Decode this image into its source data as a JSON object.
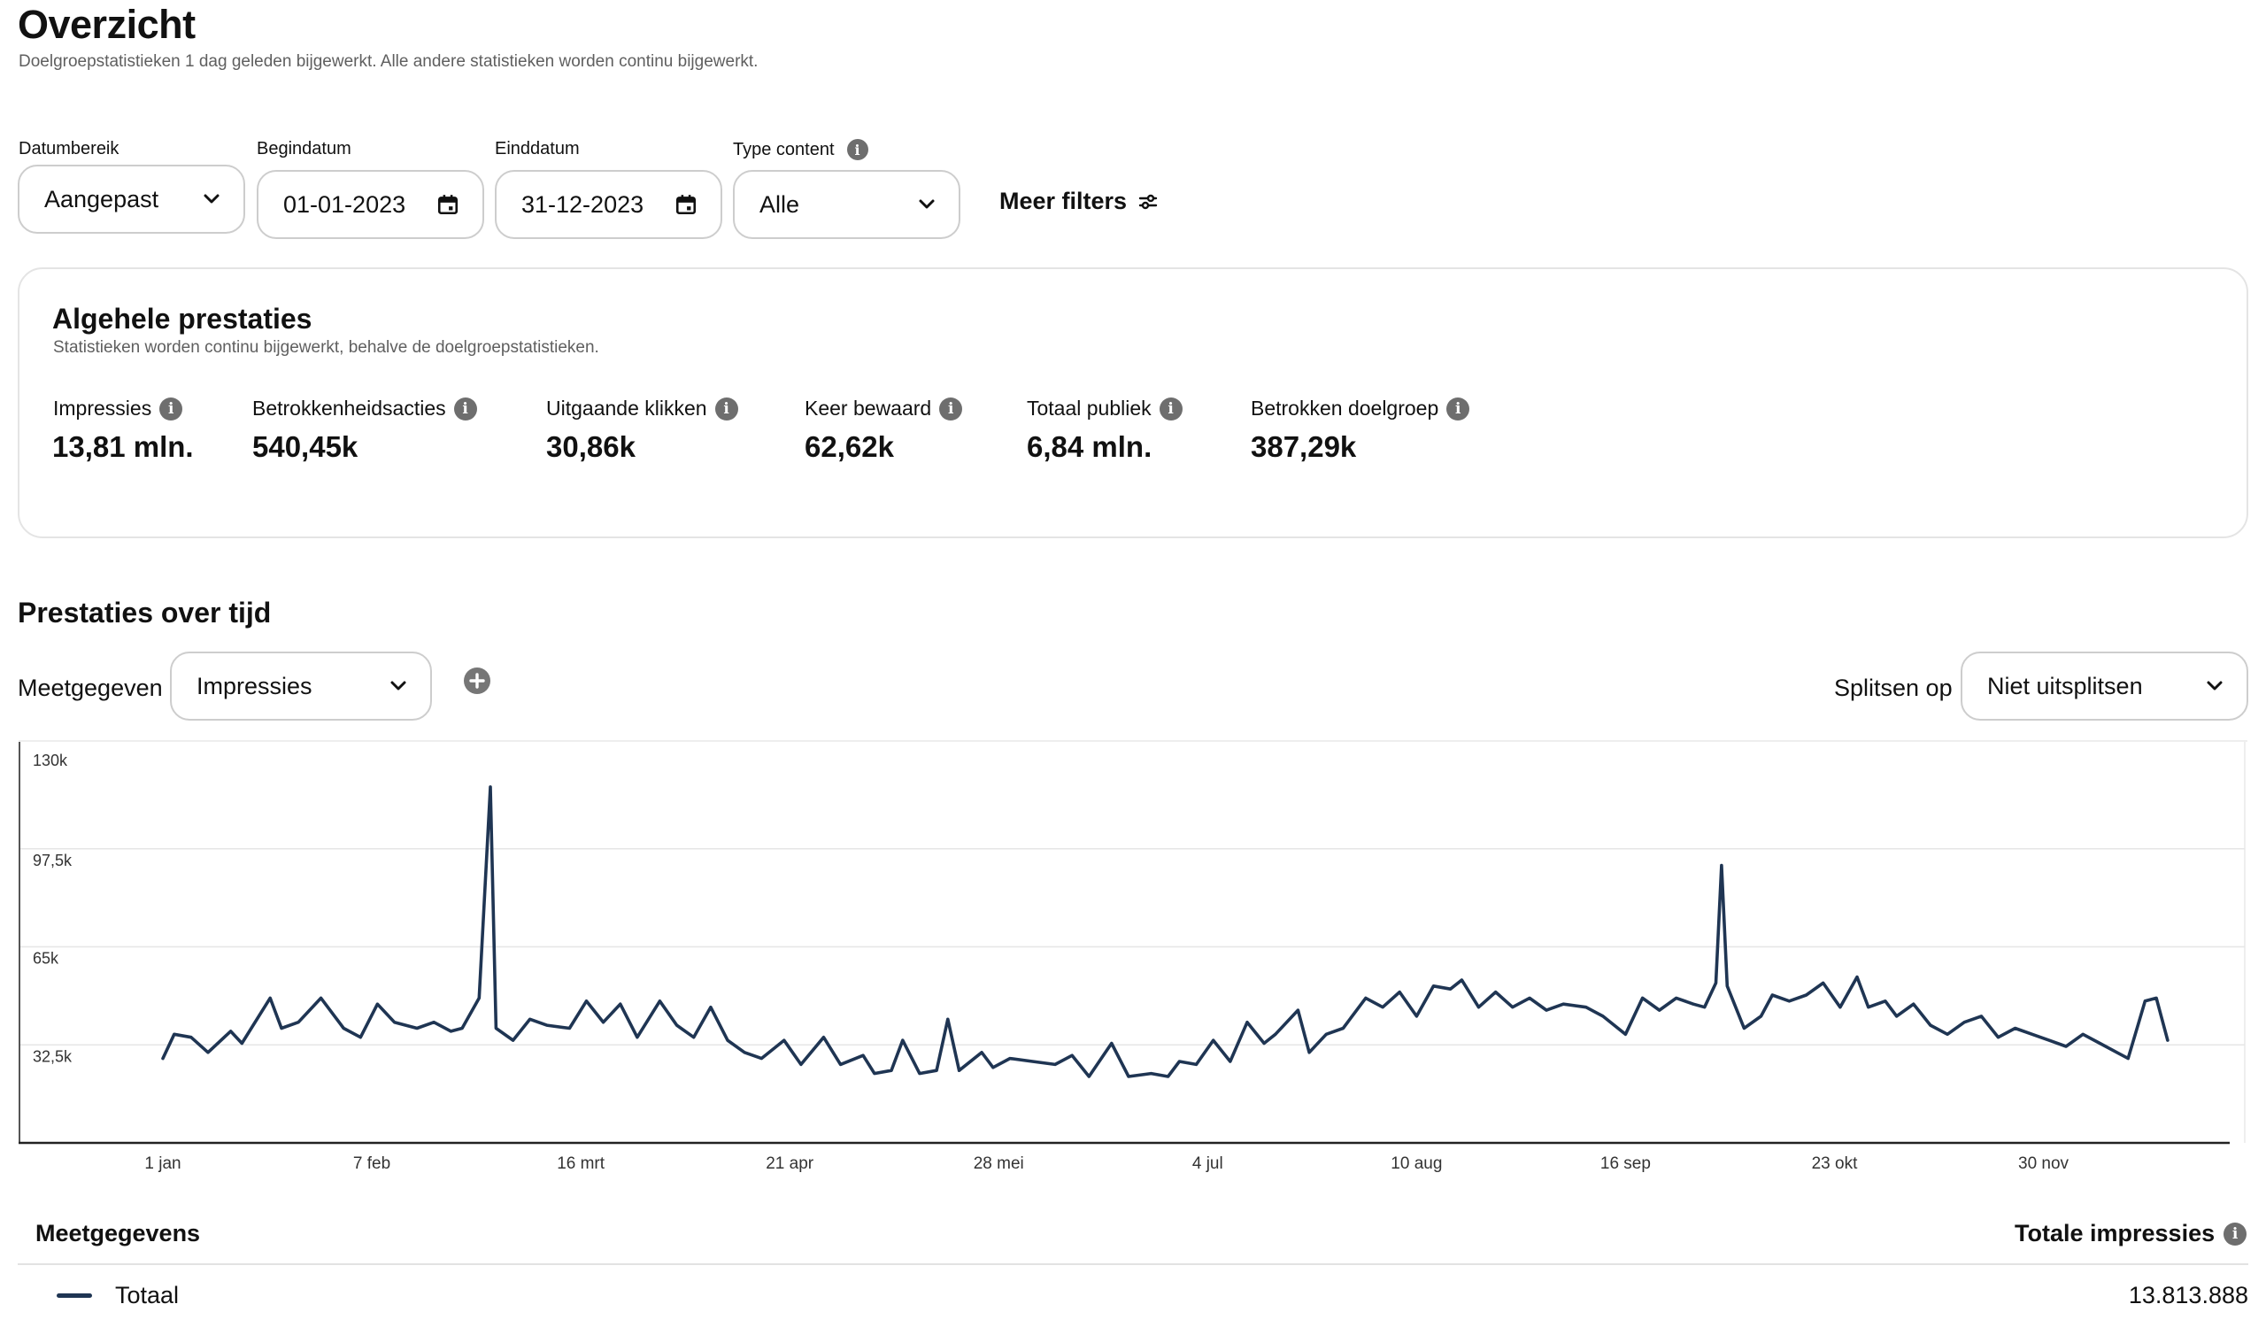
{
  "header": {
    "title": "Overzicht",
    "subtitle": "Doelgroepstatistieken 1 dag geleden bijgewerkt. Alle andere statistieken worden continu bijgewerkt."
  },
  "filters": {
    "date_range_label": "Datumbereik",
    "date_range_value": "Aangepast",
    "start_label": "Begindatum",
    "start_value": "01-01-2023",
    "end_label": "Einddatum",
    "end_value": "31-12-2023",
    "content_type_label": "Type content",
    "content_type_value": "Alle",
    "more_filters": "Meer filters"
  },
  "overall": {
    "title": "Algehele prestaties",
    "subtitle": "Statistieken worden continu bijgewerkt, behalve de doelgroepstatistieken.",
    "metrics": [
      {
        "label": "Impressies",
        "value": "13,81 mln."
      },
      {
        "label": "Betrokkenheidsacties",
        "value": "540,45k"
      },
      {
        "label": "Uitgaande klikken",
        "value": "30,86k"
      },
      {
        "label": "Keer bewaard",
        "value": "62,62k"
      },
      {
        "label": "Totaal publiek",
        "value": "6,84 mln."
      },
      {
        "label": "Betrokken doelgroep",
        "value": "387,29k"
      }
    ]
  },
  "performance": {
    "title": "Prestaties over tijd",
    "metric_label": "Meetgegeven",
    "metric_value": "Impressies",
    "split_label": "Splitsen op",
    "split_value": "Niet uitsplitsen"
  },
  "table": {
    "col_metric": "Meetgegevens",
    "col_total": "Totale impressies",
    "row_label": "Totaal",
    "row_value": "13.813.888"
  },
  "colors": {
    "line": "#1f3553",
    "grid": "#e6e6e6",
    "axis": "#222222"
  },
  "chart_data": {
    "type": "line",
    "x_start": "2023-01-01",
    "x_end": "2023-12-31",
    "y_ticks": [
      "32,5k",
      "65k",
      "97,5k",
      "130k"
    ],
    "y_tick_values": [
      32500,
      65000,
      97500,
      130000
    ],
    "ylim": [
      0,
      130000
    ],
    "x_ticks": [
      "1 jan",
      "7 feb",
      "16 mrt",
      "21 apr",
      "28 mei",
      "4 jul",
      "10 aug",
      "16 sep",
      "23 okt",
      "30 nov"
    ],
    "x_tick_days": [
      0,
      37,
      74,
      111,
      148,
      185,
      222,
      259,
      296,
      333
    ],
    "grid": true,
    "series": [
      {
        "anchors": [
          [
            0,
            28000
          ],
          [
            2,
            36000
          ],
          [
            5,
            35000
          ],
          [
            8,
            30000
          ],
          [
            12,
            37000
          ],
          [
            14,
            33000
          ],
          [
            19,
            48000
          ],
          [
            21,
            38000
          ],
          [
            24,
            40000
          ],
          [
            28,
            48000
          ],
          [
            32,
            38000
          ],
          [
            35,
            35000
          ],
          [
            38,
            46000
          ],
          [
            41,
            40000
          ],
          [
            45,
            38000
          ],
          [
            48,
            40000
          ],
          [
            51,
            37000
          ],
          [
            53,
            38000
          ],
          [
            56,
            48000
          ],
          [
            58,
            118000
          ],
          [
            59,
            38000
          ],
          [
            62,
            34000
          ],
          [
            65,
            41000
          ],
          [
            68,
            39000
          ],
          [
            72,
            38000
          ],
          [
            75,
            47000
          ],
          [
            78,
            40000
          ],
          [
            81,
            46000
          ],
          [
            84,
            35000
          ],
          [
            88,
            47000
          ],
          [
            91,
            39000
          ],
          [
            94,
            35000
          ],
          [
            97,
            45000
          ],
          [
            100,
            34000
          ],
          [
            103,
            30000
          ],
          [
            106,
            28000
          ],
          [
            110,
            34000
          ],
          [
            113,
            26000
          ],
          [
            117,
            35000
          ],
          [
            120,
            26000
          ],
          [
            124,
            29000
          ],
          [
            126,
            23000
          ],
          [
            129,
            24000
          ],
          [
            131,
            34000
          ],
          [
            134,
            23000
          ],
          [
            137,
            24000
          ],
          [
            139,
            41000
          ],
          [
            141,
            24000
          ],
          [
            145,
            30000
          ],
          [
            147,
            25000
          ],
          [
            150,
            28000
          ],
          [
            154,
            27000
          ],
          [
            158,
            26000
          ],
          [
            161,
            29000
          ],
          [
            164,
            22000
          ],
          [
            168,
            33000
          ],
          [
            171,
            22000
          ],
          [
            175,
            23000
          ],
          [
            178,
            22000
          ],
          [
            180,
            27000
          ],
          [
            183,
            26000
          ],
          [
            186,
            34000
          ],
          [
            189,
            27000
          ],
          [
            192,
            40000
          ],
          [
            195,
            33000
          ],
          [
            197,
            36000
          ],
          [
            201,
            44000
          ],
          [
            203,
            30000
          ],
          [
            206,
            36000
          ],
          [
            209,
            38000
          ],
          [
            213,
            48000
          ],
          [
            216,
            45000
          ],
          [
            219,
            50000
          ],
          [
            222,
            42000
          ],
          [
            225,
            52000
          ],
          [
            228,
            51000
          ],
          [
            230,
            54000
          ],
          [
            233,
            45000
          ],
          [
            236,
            50000
          ],
          [
            239,
            45000
          ],
          [
            242,
            48000
          ],
          [
            245,
            44000
          ],
          [
            248,
            46000
          ],
          [
            252,
            45000
          ],
          [
            255,
            42000
          ],
          [
            259,
            36000
          ],
          [
            262,
            48000
          ],
          [
            265,
            44000
          ],
          [
            268,
            48000
          ],
          [
            271,
            46000
          ],
          [
            273,
            45000
          ],
          [
            275,
            53000
          ],
          [
            276,
            92000
          ],
          [
            277,
            52000
          ],
          [
            280,
            38000
          ],
          [
            283,
            42000
          ],
          [
            285,
            49000
          ],
          [
            288,
            47000
          ],
          [
            291,
            49000
          ],
          [
            294,
            53000
          ],
          [
            297,
            45000
          ],
          [
            300,
            55000
          ],
          [
            302,
            45000
          ],
          [
            305,
            47000
          ],
          [
            307,
            42000
          ],
          [
            310,
            46000
          ],
          [
            313,
            39000
          ],
          [
            316,
            36000
          ],
          [
            319,
            40000
          ],
          [
            322,
            42000
          ],
          [
            325,
            35000
          ],
          [
            328,
            38000
          ],
          [
            331,
            36000
          ],
          [
            334,
            34000
          ],
          [
            337,
            32000
          ],
          [
            340,
            36000
          ],
          [
            343,
            33000
          ],
          [
            346,
            30000
          ],
          [
            348,
            28000
          ],
          [
            351,
            47000
          ],
          [
            353,
            48000
          ],
          [
            355,
            34000
          ]
        ]
      }
    ]
  }
}
